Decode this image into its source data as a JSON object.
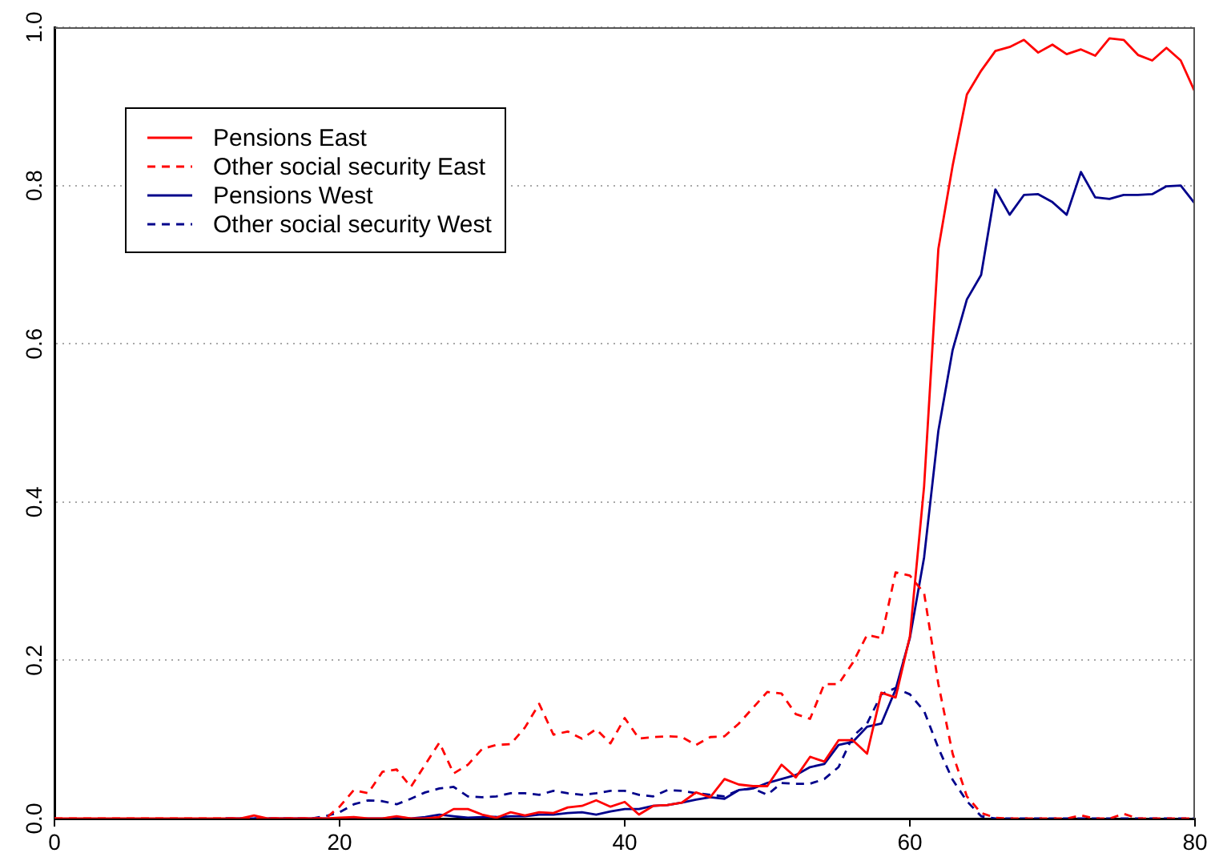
{
  "chart_data": {
    "type": "line",
    "x": [
      0,
      1,
      2,
      3,
      4,
      5,
      6,
      7,
      8,
      9,
      10,
      11,
      12,
      13,
      14,
      15,
      16,
      17,
      18,
      19,
      20,
      21,
      22,
      23,
      24,
      25,
      26,
      27,
      28,
      29,
      30,
      31,
      32,
      33,
      34,
      35,
      36,
      37,
      38,
      39,
      40,
      41,
      42,
      43,
      44,
      45,
      46,
      47,
      48,
      49,
      50,
      51,
      52,
      53,
      54,
      55,
      56,
      57,
      58,
      59,
      60,
      61,
      62,
      63,
      64,
      65,
      66,
      67,
      68,
      69,
      70,
      71,
      72,
      73,
      74,
      75,
      76,
      77,
      78,
      79,
      80
    ],
    "series": [
      {
        "name": "Pensions East",
        "color": "#ff0000",
        "line_style": "solid",
        "values": [
          0,
          0,
          0,
          0,
          0,
          0,
          0,
          0,
          0,
          0,
          0,
          0,
          0,
          0,
          0.004,
          0,
          0,
          0,
          0,
          0,
          0.001,
          0.002,
          0,
          0,
          0.003,
          0,
          0,
          0.002,
          0.012,
          0.012,
          0.005,
          0.001,
          0.008,
          0.004,
          0.008,
          0.007,
          0.014,
          0.016,
          0.023,
          0.015,
          0.021,
          0.005,
          0.016,
          0.017,
          0.02,
          0.033,
          0.027,
          0.05,
          0.043,
          0.041,
          0.041,
          0.068,
          0.052,
          0.078,
          0.072,
          0.099,
          0.099,
          0.082,
          0.159,
          0.153,
          0.23,
          0.42,
          0.72,
          0.825,
          0.915,
          0.945,
          0.97,
          0.975,
          0.984,
          0.968,
          0.978,
          0.966,
          0.972,
          0.964,
          0.986,
          0.984,
          0.965,
          0.958,
          0.974,
          0.958,
          0.918
        ]
      },
      {
        "name": "Other social security East",
        "color": "#ff0000",
        "line_style": "dashed",
        "values": [
          0,
          0,
          0,
          0,
          0,
          0,
          0,
          0,
          0,
          0,
          0,
          0,
          0,
          0,
          0,
          0,
          0,
          0,
          0,
          0,
          0.015,
          0.036,
          0.032,
          0.059,
          0.062,
          0.04,
          0.068,
          0.096,
          0.057,
          0.068,
          0.088,
          0.093,
          0.094,
          0.115,
          0.145,
          0.106,
          0.11,
          0.101,
          0.113,
          0.095,
          0.127,
          0.101,
          0.103,
          0.104,
          0.103,
          0.093,
          0.103,
          0.104,
          0.12,
          0.14,
          0.16,
          0.158,
          0.132,
          0.126,
          0.17,
          0.17,
          0.197,
          0.232,
          0.228,
          0.311,
          0.307,
          0.285,
          0.17,
          0.082,
          0.028,
          0.007,
          0.001,
          0,
          0,
          0,
          0,
          0,
          0.004,
          0,
          0,
          0.006,
          0,
          0,
          0,
          0,
          0
        ]
      },
      {
        "name": "Pensions West",
        "color": "#00008b",
        "line_style": "solid",
        "x": [
          12,
          13,
          14,
          15,
          16,
          17,
          18,
          19,
          20,
          21,
          22,
          23,
          24,
          25,
          26,
          27,
          28,
          29,
          30,
          31,
          32,
          33,
          34,
          35,
          36,
          37,
          38,
          39,
          40,
          41,
          42,
          43,
          44,
          45,
          46,
          47,
          48,
          49,
          50,
          51,
          52,
          53,
          54,
          55,
          56,
          57,
          58,
          59,
          60,
          61,
          62,
          63,
          64,
          65,
          66,
          67,
          68,
          69,
          70,
          71,
          72,
          73,
          74,
          75,
          76,
          77,
          78,
          79,
          80
        ],
        "values": [
          0,
          0,
          0,
          0,
          0,
          0,
          0,
          0,
          0,
          0,
          0,
          0,
          0.002,
          0,
          0.002,
          0.005,
          0.003,
          0.001,
          0.002,
          0.002,
          0.003,
          0.003,
          0.005,
          0.005,
          0.007,
          0.008,
          0.005,
          0.009,
          0.012,
          0.012,
          0.016,
          0.017,
          0.02,
          0.024,
          0.027,
          0.025,
          0.036,
          0.038,
          0.045,
          0.05,
          0.055,
          0.065,
          0.069,
          0.093,
          0.097,
          0.116,
          0.12,
          0.163,
          0.228,
          0.33,
          0.49,
          0.592,
          0.656,
          0.687,
          0.795,
          0.763,
          0.788,
          0.789,
          0.779,
          0.763,
          0.817,
          0.785,
          0.783,
          0.788,
          0.788,
          0.789,
          0.799,
          0.8,
          0.777
        ]
      },
      {
        "name": "Other social security West",
        "color": "#00008b",
        "line_style": "dashed",
        "x": [
          12,
          13,
          14,
          15,
          16,
          17,
          18,
          19,
          20,
          21,
          22,
          23,
          24,
          25,
          26,
          27,
          28,
          29,
          30,
          31,
          32,
          33,
          34,
          35,
          36,
          37,
          38,
          39,
          40,
          41,
          42,
          43,
          44,
          45,
          46,
          47,
          48,
          49,
          50,
          51,
          52,
          53,
          54,
          55,
          56,
          57,
          58,
          59,
          60,
          61,
          62,
          63,
          64,
          65,
          66,
          67,
          68,
          69,
          70,
          71,
          72,
          73,
          74,
          75,
          76,
          77,
          78,
          79,
          80
        ],
        "values": [
          0,
          0,
          0,
          0,
          0,
          0,
          0,
          0.003,
          0.008,
          0.018,
          0.023,
          0.022,
          0.018,
          0.025,
          0.033,
          0.038,
          0.04,
          0.028,
          0.027,
          0.028,
          0.032,
          0.032,
          0.03,
          0.035,
          0.032,
          0.03,
          0.032,
          0.035,
          0.035,
          0.03,
          0.028,
          0.036,
          0.035,
          0.032,
          0.03,
          0.028,
          0.036,
          0.038,
          0.03,
          0.045,
          0.044,
          0.044,
          0.05,
          0.065,
          0.104,
          0.12,
          0.157,
          0.165,
          0.157,
          0.136,
          0.089,
          0.049,
          0.022,
          0.003,
          0,
          0,
          0,
          0,
          0,
          0,
          0,
          0,
          0,
          0,
          0,
          0,
          0,
          0,
          0
        ]
      }
    ],
    "xlim": [
      0,
      80
    ],
    "xticks": [
      0,
      20,
      40,
      60,
      80
    ],
    "ylim": [
      0,
      1
    ],
    "yticks": [
      {
        "value": 0,
        "label": "0.0"
      },
      0.2,
      0.4,
      0.6,
      0.8,
      {
        "value": 1,
        "label": "1.0"
      }
    ],
    "grid": "y",
    "legend": "top left"
  }
}
